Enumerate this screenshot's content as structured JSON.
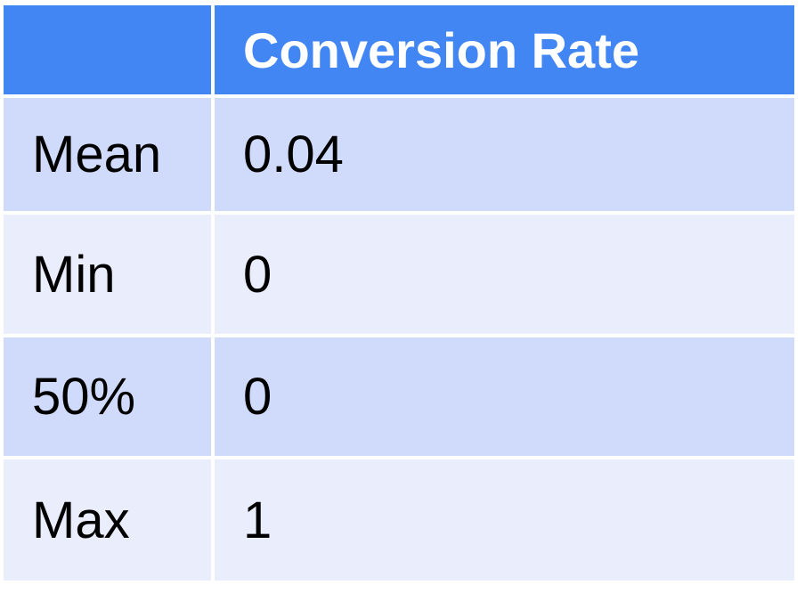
{
  "chart_data": {
    "type": "table",
    "columns": [
      "",
      "Conversion Rate"
    ],
    "rows": [
      {
        "label": "Mean",
        "value": "0.04"
      },
      {
        "label": "Min",
        "value": "0"
      },
      {
        "label": "50%",
        "value": "0"
      },
      {
        "label": "Max",
        "value": "1"
      }
    ]
  },
  "colors": {
    "header_bg": "#4286f4",
    "header_text": "#ffffff",
    "row_dark": "#d0dafa",
    "row_light": "#e9edfc"
  }
}
